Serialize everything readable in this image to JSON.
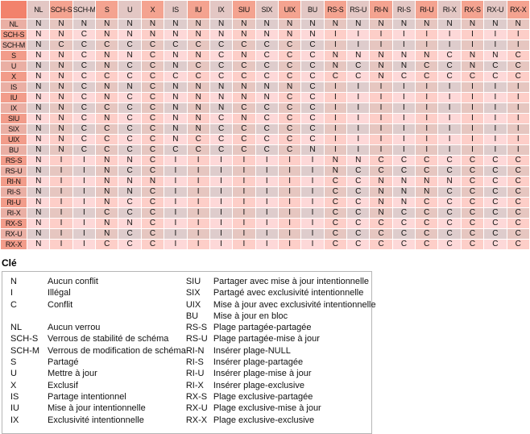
{
  "matrix": {
    "columns": [
      "NL",
      "SCH-S",
      "SCH-M",
      "S",
      "U",
      "X",
      "IS",
      "IU",
      "IX",
      "SIU",
      "SIX",
      "UIX",
      "BU",
      "RS-S",
      "RS-U",
      "RI-N",
      "RI-S",
      "RI-U",
      "RI-X",
      "RX-S",
      "RX-U",
      "RX-X"
    ],
    "rows": [
      {
        "label": "NL",
        "values": [
          "N",
          "N",
          "N",
          "N",
          "N",
          "N",
          "N",
          "N",
          "N",
          "N",
          "N",
          "N",
          "N",
          "N",
          "N",
          "N",
          "N",
          "N",
          "N",
          "N",
          "N",
          "N"
        ]
      },
      {
        "label": "SCH-S",
        "values": [
          "N",
          "N",
          "C",
          "N",
          "N",
          "N",
          "N",
          "N",
          "N",
          "N",
          "N",
          "N",
          "N",
          "I",
          "I",
          "I",
          "I",
          "I",
          "I",
          "I",
          "I",
          "I"
        ]
      },
      {
        "label": "SCH-M",
        "values": [
          "N",
          "C",
          "C",
          "C",
          "C",
          "C",
          "C",
          "C",
          "C",
          "C",
          "C",
          "C",
          "C",
          "I",
          "I",
          "I",
          "I",
          "I",
          "I",
          "I",
          "I",
          "I"
        ]
      },
      {
        "label": "S",
        "values": [
          "N",
          "N",
          "C",
          "N",
          "N",
          "C",
          "N",
          "N",
          "C",
          "N",
          "C",
          "C",
          "C",
          "N",
          "N",
          "N",
          "N",
          "N",
          "C",
          "N",
          "N",
          "C"
        ]
      },
      {
        "label": "U",
        "values": [
          "N",
          "N",
          "C",
          "N",
          "C",
          "C",
          "N",
          "C",
          "C",
          "C",
          "C",
          "C",
          "C",
          "N",
          "C",
          "N",
          "N",
          "C",
          "C",
          "N",
          "C",
          "C"
        ]
      },
      {
        "label": "X",
        "values": [
          "N",
          "N",
          "C",
          "C",
          "C",
          "C",
          "C",
          "C",
          "C",
          "C",
          "C",
          "C",
          "C",
          "C",
          "C",
          "N",
          "C",
          "C",
          "C",
          "C",
          "C",
          "C"
        ]
      },
      {
        "label": "IS",
        "values": [
          "N",
          "N",
          "C",
          "N",
          "N",
          "C",
          "N",
          "N",
          "N",
          "N",
          "N",
          "N",
          "C",
          "I",
          "I",
          "I",
          "I",
          "I",
          "I",
          "I",
          "I",
          "I"
        ]
      },
      {
        "label": "IU",
        "values": [
          "N",
          "N",
          "C",
          "N",
          "C",
          "C",
          "N",
          "N",
          "N",
          "N",
          "N",
          "C",
          "C",
          "I",
          "I",
          "I",
          "I",
          "I",
          "I",
          "I",
          "I",
          "I"
        ]
      },
      {
        "label": "IX",
        "values": [
          "N",
          "N",
          "C",
          "C",
          "C",
          "C",
          "N",
          "N",
          "N",
          "C",
          "C",
          "C",
          "C",
          "I",
          "I",
          "I",
          "I",
          "I",
          "I",
          "I",
          "I",
          "I"
        ]
      },
      {
        "label": "SIU",
        "values": [
          "N",
          "N",
          "C",
          "N",
          "C",
          "C",
          "N",
          "N",
          "C",
          "N",
          "C",
          "C",
          "C",
          "I",
          "I",
          "I",
          "I",
          "I",
          "I",
          "I",
          "I",
          "I"
        ]
      },
      {
        "label": "SIX",
        "values": [
          "N",
          "N",
          "C",
          "C",
          "C",
          "C",
          "N",
          "N",
          "C",
          "C",
          "C",
          "C",
          "C",
          "I",
          "I",
          "I",
          "I",
          "I",
          "I",
          "I",
          "I",
          "I"
        ]
      },
      {
        "label": "UIX",
        "values": [
          "N",
          "N",
          "C",
          "C",
          "C",
          "C",
          "N",
          "C",
          "C",
          "C",
          "C",
          "C",
          "C",
          "I",
          "I",
          "I",
          "I",
          "I",
          "I",
          "I",
          "I",
          "I"
        ]
      },
      {
        "label": "BU",
        "values": [
          "N",
          "N",
          "C",
          "C",
          "C",
          "C",
          "C",
          "C",
          "C",
          "C",
          "C",
          "C",
          "N",
          "I",
          "I",
          "I",
          "I",
          "I",
          "I",
          "I",
          "I",
          "I"
        ]
      },
      {
        "label": "RS-S",
        "values": [
          "N",
          "I",
          "I",
          "N",
          "N",
          "C",
          "I",
          "I",
          "I",
          "I",
          "I",
          "I",
          "I",
          "N",
          "N",
          "C",
          "C",
          "C",
          "C",
          "C",
          "C",
          "C"
        ]
      },
      {
        "label": "RS-U",
        "values": [
          "N",
          "I",
          "I",
          "N",
          "C",
          "C",
          "I",
          "I",
          "I",
          "I",
          "I",
          "I",
          "I",
          "N",
          "C",
          "C",
          "C",
          "C",
          "C",
          "C",
          "C",
          "C"
        ]
      },
      {
        "label": "RI-N",
        "values": [
          "N",
          "I",
          "I",
          "N",
          "N",
          "N",
          "I",
          "I",
          "I",
          "I",
          "I",
          "I",
          "I",
          "C",
          "C",
          "N",
          "N",
          "N",
          "N",
          "C",
          "C",
          "C"
        ]
      },
      {
        "label": "RI-S",
        "values": [
          "N",
          "I",
          "I",
          "N",
          "N",
          "C",
          "I",
          "I",
          "I",
          "I",
          "I",
          "I",
          "I",
          "C",
          "C",
          "N",
          "N",
          "N",
          "C",
          "C",
          "C",
          "C"
        ]
      },
      {
        "label": "RI-U",
        "values": [
          "N",
          "I",
          "I",
          "N",
          "C",
          "C",
          "I",
          "I",
          "I",
          "I",
          "I",
          "I",
          "I",
          "C",
          "C",
          "N",
          "N",
          "C",
          "C",
          "C",
          "C",
          "C"
        ]
      },
      {
        "label": "RI-X",
        "values": [
          "N",
          "I",
          "I",
          "C",
          "C",
          "C",
          "I",
          "I",
          "I",
          "I",
          "I",
          "I",
          "I",
          "C",
          "C",
          "N",
          "C",
          "C",
          "C",
          "C",
          "C",
          "C"
        ]
      },
      {
        "label": "RX-S",
        "values": [
          "N",
          "I",
          "I",
          "N",
          "N",
          "C",
          "I",
          "I",
          "I",
          "I",
          "I",
          "I",
          "I",
          "C",
          "C",
          "C",
          "C",
          "C",
          "C",
          "C",
          "C",
          "C"
        ]
      },
      {
        "label": "RX-U",
        "values": [
          "N",
          "I",
          "I",
          "N",
          "C",
          "C",
          "I",
          "I",
          "I",
          "I",
          "I",
          "I",
          "I",
          "C",
          "C",
          "C",
          "C",
          "C",
          "C",
          "C",
          "C",
          "C"
        ]
      },
      {
        "label": "RX-X",
        "values": [
          "N",
          "I",
          "I",
          "C",
          "C",
          "C",
          "I",
          "I",
          "I",
          "I",
          "I",
          "I",
          "I",
          "C",
          "C",
          "C",
          "C",
          "C",
          "C",
          "C",
          "C",
          "C"
        ]
      }
    ]
  },
  "legend": {
    "title": "Clé",
    "left": [
      {
        "term": "N",
        "def": "Aucun conflit"
      },
      {
        "term": "I",
        "def": "Illégal"
      },
      {
        "term": "C",
        "def": "Conflit"
      },
      {
        "term": "",
        "def": ""
      },
      {
        "term": "NL",
        "def": "Aucun verrou"
      },
      {
        "term": "SCH-S",
        "def": "Verrous de stabilité de schéma"
      },
      {
        "term": "SCH-M",
        "def": "Verrous de modification de schéma"
      },
      {
        "term": "S",
        "def": "Partagé"
      },
      {
        "term": "U",
        "def": "Mettre à jour"
      },
      {
        "term": "X",
        "def": "Exclusif"
      },
      {
        "term": "IS",
        "def": "Partage intentionnel"
      },
      {
        "term": "IU",
        "def": "Mise à jour intentionnelle"
      },
      {
        "term": "IX",
        "def": "Exclusivité intentionnelle"
      }
    ],
    "right": [
      {
        "term": "SIU",
        "def": "Partager avec mise à jour intentionnelle"
      },
      {
        "term": "SIX",
        "def": "Partagé avec exclusivité intentionnelle"
      },
      {
        "term": "UIX",
        "def": "Mise à jour avec exclusivité intentionnelle"
      },
      {
        "term": "BU",
        "def": "Mise à jour en bloc"
      },
      {
        "term": "RS-S",
        "def": "Plage partagée-partagée"
      },
      {
        "term": "RS-U",
        "def": "Plage partagée-mise à jour"
      },
      {
        "term": "RI-N",
        "def": "Insérer plage-NULL"
      },
      {
        "term": "RI-S",
        "def": "Insérer plage-partagée"
      },
      {
        "term": "RI-U",
        "def": "Insérer plage-mise à jour"
      },
      {
        "term": "RI-X",
        "def": "Insérer plage-exclusive"
      },
      {
        "term": "RX-S",
        "def": "Plage exclusive-partagée"
      },
      {
        "term": "RX-U",
        "def": "Plage exclusive-mise à jour"
      },
      {
        "term": "RX-X",
        "def": "Plage exclusive-exclusive"
      }
    ]
  },
  "colors": {
    "corner": "#f2826c",
    "header_odd": "#f4a390",
    "header_even": "#e3c7c4",
    "row_label_odd": "#f29c8a",
    "row_label_even": "#eaafa4",
    "cell_even_even": "#decccc",
    "cell_even_odd": "#e6c6c0",
    "cell_odd_even": "#fdd8d8",
    "cell_odd_odd": "#fdcec8"
  }
}
